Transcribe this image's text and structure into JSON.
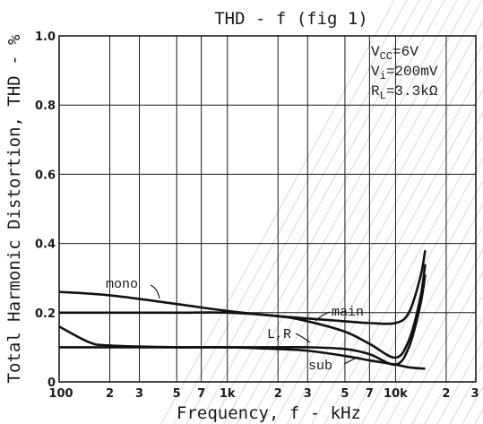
{
  "chart_data": {
    "type": "line",
    "title": "THD - f (fig 1)",
    "xlabel": "Frequency, f - kHz",
    "ylabel": "Total Harmonic Distortion, THD - %",
    "x_scale": "log",
    "xlim": [
      100,
      30000
    ],
    "ylim": [
      0,
      1.0
    ],
    "grid": true,
    "x_ticks": [
      {
        "value": 100,
        "label": "100"
      },
      {
        "value": 200,
        "label": "2"
      },
      {
        "value": 300,
        "label": "3"
      },
      {
        "value": 500,
        "label": "5"
      },
      {
        "value": 700,
        "label": "7"
      },
      {
        "value": 1000,
        "label": "1k"
      },
      {
        "value": 2000,
        "label": "2"
      },
      {
        "value": 3000,
        "label": "3"
      },
      {
        "value": 5000,
        "label": "5"
      },
      {
        "value": 7000,
        "label": "7"
      },
      {
        "value": 10000,
        "label": "10k"
      },
      {
        "value": 20000,
        "label": "2"
      },
      {
        "value": 30000,
        "label": "3"
      }
    ],
    "y_ticks": [
      {
        "value": 0,
        "label": "0"
      },
      {
        "value": 0.2,
        "label": "0.2"
      },
      {
        "value": 0.4,
        "label": "0.4"
      },
      {
        "value": 0.6,
        "label": "0.6"
      },
      {
        "value": 0.8,
        "label": "0.8"
      },
      {
        "value": 1.0,
        "label": "1.0"
      }
    ],
    "conditions": [
      {
        "symbol": "V",
        "sub": "CC",
        "value": "=6V"
      },
      {
        "symbol": "V",
        "sub": "i",
        "value": "=200mV"
      },
      {
        "symbol": "R",
        "sub": "L",
        "value": "=3.3kΩ"
      }
    ],
    "series": [
      {
        "name": "mono",
        "x": [
          100,
          200,
          500,
          1000,
          2000,
          5000,
          7000,
          10000,
          12000,
          14000,
          15000
        ],
        "y": [
          0.26,
          0.25,
          0.225,
          0.205,
          0.19,
          0.175,
          0.17,
          0.17,
          0.2,
          0.3,
          0.38
        ]
      },
      {
        "name": "main",
        "x": [
          100,
          200,
          500,
          1000,
          2000,
          3000,
          5000,
          7000,
          10000,
          12000,
          14000,
          15000
        ],
        "y": [
          0.2,
          0.2,
          0.2,
          0.2,
          0.19,
          0.175,
          0.145,
          0.11,
          0.07,
          0.12,
          0.24,
          0.34
        ]
      },
      {
        "name": "L, R",
        "x": [
          100,
          150,
          200,
          500,
          1000,
          2000,
          3000,
          5000,
          7000,
          10000,
          12000,
          14000,
          15000
        ],
        "y": [
          0.16,
          0.115,
          0.105,
          0.1,
          0.1,
          0.1,
          0.1,
          0.095,
          0.08,
          0.05,
          0.1,
          0.22,
          0.31
        ]
      },
      {
        "name": "sub",
        "x": [
          100,
          200,
          500,
          1000,
          2000,
          3000,
          5000,
          7000,
          10000,
          12000,
          15000
        ],
        "y": [
          0.1,
          0.1,
          0.1,
          0.1,
          0.095,
          0.09,
          0.075,
          0.062,
          0.05,
          0.042,
          0.038
        ]
      }
    ],
    "annotations": [
      "mono",
      "main",
      "L,R",
      "sub"
    ]
  }
}
